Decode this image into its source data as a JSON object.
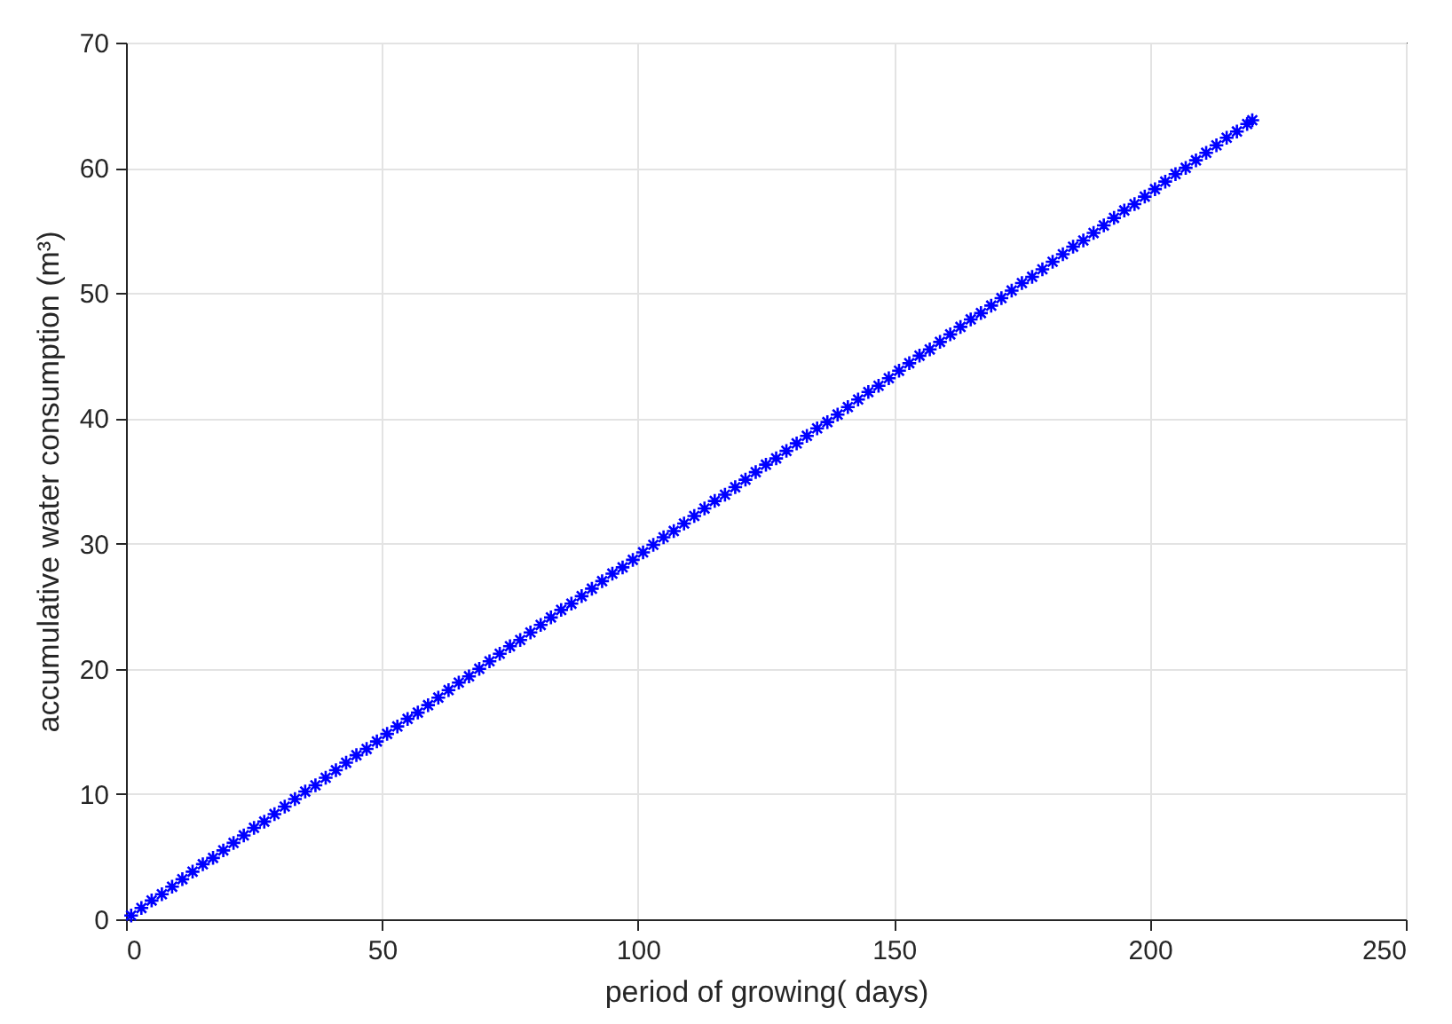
{
  "chart_data": {
    "type": "scatter",
    "xlabel": "period of growing( days)",
    "ylabel": "accumulative water consumption (m³)",
    "xlim": [
      0,
      250
    ],
    "xticks": [
      0,
      50,
      100,
      150,
      200,
      250
    ],
    "ylim": [
      0,
      70
    ],
    "yticks": [
      0,
      10,
      20,
      30,
      40,
      50,
      60,
      70
    ],
    "grid": true,
    "marker": "cross",
    "series": [
      {
        "color": "#0000ff",
        "x": [
          1,
          3,
          5,
          7,
          9,
          11,
          13,
          15,
          17,
          19,
          21,
          23,
          25,
          27,
          29,
          31,
          33,
          35,
          37,
          39,
          41,
          43,
          45,
          47,
          49,
          51,
          53,
          55,
          57,
          59,
          61,
          63,
          65,
          67,
          69,
          71,
          73,
          75,
          77,
          79,
          81,
          83,
          85,
          87,
          89,
          91,
          93,
          95,
          97,
          99,
          101,
          103,
          105,
          107,
          109,
          111,
          113,
          115,
          117,
          119,
          121,
          123,
          125,
          127,
          129,
          131,
          133,
          135,
          137,
          139,
          141,
          143,
          145,
          147,
          149,
          151,
          153,
          155,
          157,
          159,
          161,
          163,
          165,
          167,
          169,
          171,
          173,
          175,
          177,
          179,
          181,
          183,
          185,
          187,
          189,
          191,
          193,
          195,
          197,
          199,
          201,
          203,
          205,
          207,
          209,
          211,
          213,
          215,
          217,
          219,
          220
        ],
        "values": [
          0.3,
          0.9,
          1.5,
          2.0,
          2.6,
          3.2,
          3.8,
          4.4,
          4.9,
          5.5,
          6.1,
          6.7,
          7.3,
          7.8,
          8.4,
          9.0,
          9.6,
          10.2,
          10.7,
          11.3,
          11.9,
          12.5,
          13.1,
          13.6,
          14.2,
          14.8,
          15.4,
          16.0,
          16.5,
          17.1,
          17.7,
          18.3,
          18.9,
          19.4,
          20.0,
          20.6,
          21.2,
          21.8,
          22.3,
          22.9,
          23.5,
          24.1,
          24.7,
          25.2,
          25.8,
          26.4,
          27.0,
          27.6,
          28.1,
          28.7,
          29.3,
          29.9,
          30.5,
          31.0,
          31.6,
          32.2,
          32.8,
          33.4,
          33.9,
          34.5,
          35.1,
          35.7,
          36.3,
          36.8,
          37.4,
          38.0,
          38.6,
          39.2,
          39.7,
          40.3,
          40.9,
          41.5,
          42.1,
          42.6,
          43.2,
          43.8,
          44.4,
          45.0,
          45.5,
          46.1,
          46.7,
          47.3,
          47.9,
          48.4,
          49.0,
          49.6,
          50.2,
          50.8,
          51.3,
          51.9,
          52.5,
          53.1,
          53.7,
          54.2,
          54.8,
          55.4,
          56.0,
          56.6,
          57.1,
          57.7,
          58.3,
          58.9,
          59.5,
          60.0,
          60.6,
          61.2,
          61.8,
          62.4,
          62.9,
          63.5,
          63.8
        ]
      }
    ]
  }
}
